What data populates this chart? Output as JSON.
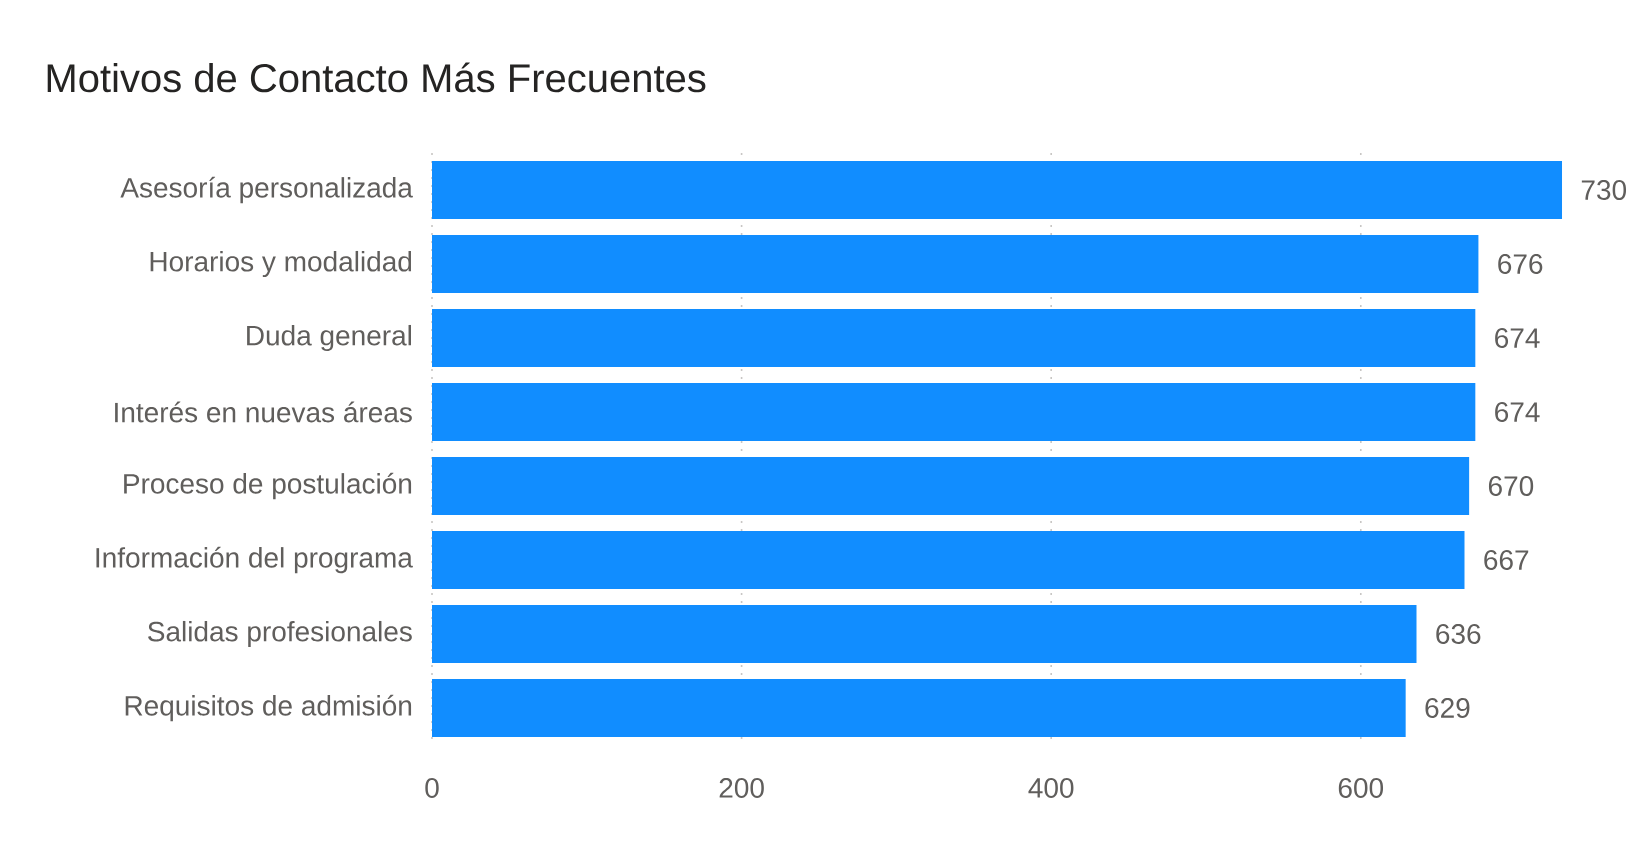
{
  "chart_data": {
    "type": "bar",
    "orientation": "horizontal",
    "title": "Motivos de Contacto Más Frecuentes",
    "categories": [
      "Asesoría personalizada",
      "Horarios y modalidad",
      "Duda general",
      "Interés en nuevas áreas",
      "Proceso de postulación",
      "Información del programa",
      "Salidas profesionales",
      "Requisitos de admisión"
    ],
    "values": [
      730,
      676,
      674,
      674,
      670,
      667,
      636,
      629
    ],
    "color": "#118dff",
    "xlim": [
      0,
      730
    ],
    "xticks": [
      0,
      200,
      400,
      600
    ],
    "grid": "x",
    "data_labels": true
  }
}
